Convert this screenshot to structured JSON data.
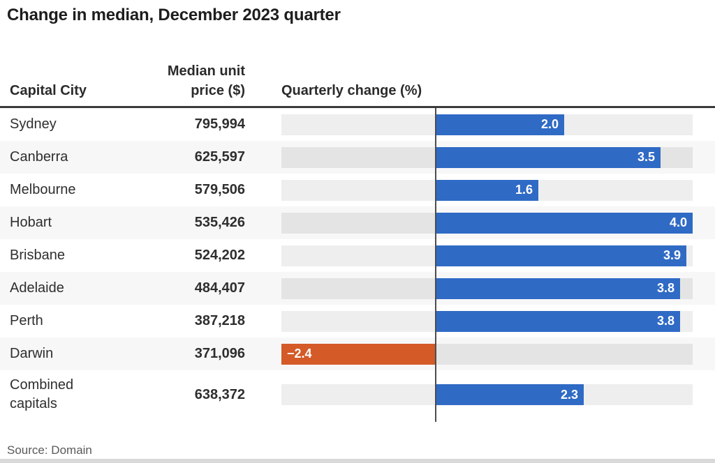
{
  "title": "Change in median, December 2023 quarter",
  "source": "Source: Domain",
  "columns": {
    "city": "Capital City",
    "price_line1": "Median unit",
    "price_line2": "price ($)",
    "change": "Quarterly change (%)"
  },
  "colors": {
    "positive_bar": "#2f6ac5",
    "negative_bar": "#d45a28",
    "track": "#eeeeee",
    "track_alt": "#e4e4e4",
    "row_alt_bg": "#f7f7f7",
    "header_rule": "#3b3b3b",
    "zero_line": "#4d4d4d"
  },
  "chart_data": {
    "type": "bar",
    "orientation": "horizontal",
    "title": "Change in median, December 2023 quarter",
    "xlabel": "Quarterly change (%)",
    "categories": [
      "Sydney",
      "Canberra",
      "Melbourne",
      "Hobart",
      "Brisbane",
      "Adelaide",
      "Perth",
      "Darwin",
      "Combined\ncapitals"
    ],
    "median_unit_price": [
      "795,994",
      "625,597",
      "579,506",
      "535,426",
      "524,202",
      "484,407",
      "387,218",
      "371,096",
      "638,372"
    ],
    "series": [
      {
        "name": "Quarterly change (%)",
        "values": [
          2.0,
          3.5,
          1.6,
          4.0,
          3.9,
          3.8,
          3.8,
          -2.4,
          2.3
        ]
      }
    ],
    "value_labels": [
      "2.0",
      "3.5",
      "1.6",
      "4.0",
      "3.9",
      "3.8",
      "3.8",
      "−2.4",
      "2.3"
    ],
    "xlim": [
      -2.4,
      4.0
    ],
    "grid": false,
    "legend": false
  }
}
